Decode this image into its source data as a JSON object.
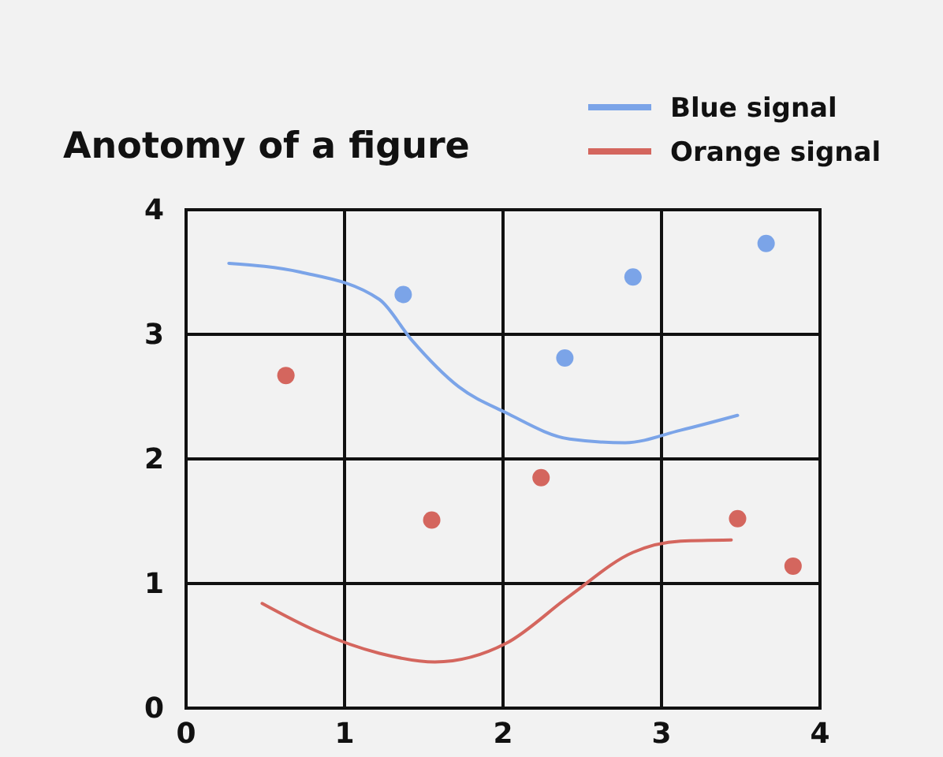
{
  "chart_data": {
    "type": "line",
    "title": "Anotomy of a figure",
    "xlim": [
      0,
      4
    ],
    "ylim": [
      0,
      4
    ],
    "xticks": [
      0,
      1,
      2,
      3,
      4
    ],
    "yticks": [
      0,
      1,
      2,
      3,
      4
    ],
    "grid": true,
    "legend": "top right",
    "series": [
      {
        "name": "Blue signal",
        "type": "line",
        "color": "#7ba4e8",
        "x": [
          0.27,
          0.72,
          1.22,
          1.42,
          1.72,
          2.02,
          2.42,
          2.77,
          3.12,
          3.48
        ],
        "values": [
          3.57,
          3.5,
          3.28,
          2.96,
          2.58,
          2.37,
          2.16,
          2.13,
          2.23,
          2.35
        ]
      },
      {
        "type": "scatter",
        "marker": "circle",
        "color": "#7ba4e8",
        "x": [
          1.37,
          2.39,
          2.82,
          3.66
        ],
        "values": [
          3.32,
          2.81,
          3.46,
          3.73
        ]
      },
      {
        "name": "Orange signal",
        "type": "line",
        "color": "#d4665e",
        "x": [
          0.48,
          0.82,
          1.22,
          1.57,
          2.02,
          2.42,
          2.82,
          3.12,
          3.44
        ],
        "values": [
          0.84,
          0.62,
          0.44,
          0.37,
          0.52,
          0.9,
          1.25,
          1.34,
          1.35
        ]
      },
      {
        "type": "scatter",
        "marker": "circle",
        "color": "#d4665e",
        "x": [
          0.63,
          1.55,
          2.24,
          3.48,
          3.83
        ],
        "values": [
          2.67,
          1.51,
          1.85,
          1.52,
          1.14
        ]
      }
    ]
  }
}
